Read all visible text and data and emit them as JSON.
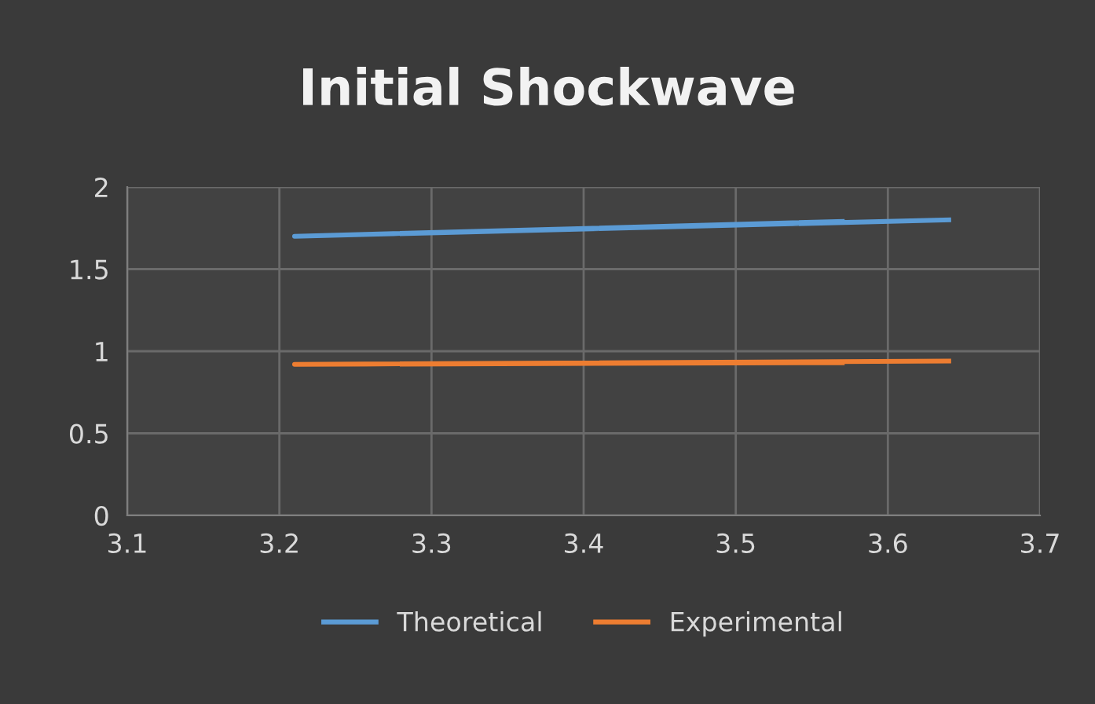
{
  "chart_data": {
    "type": "line",
    "title": "Initial Shockwave",
    "series": [
      {
        "name": "Theoretical",
        "color": "#5b9bd5",
        "x": [
          3.57,
          3.21,
          3.64
        ],
        "values": [
          1.79,
          1.7,
          1.8
        ]
      },
      {
        "name": "Experimental",
        "color": "#ed7d31",
        "x": [
          3.57,
          3.21,
          3.64
        ],
        "values": [
          0.93,
          0.92,
          0.94
        ]
      }
    ],
    "xlim": [
      3.1,
      3.7
    ],
    "xticks": [
      3.1,
      3.2,
      3.3,
      3.4,
      3.5,
      3.6,
      3.7
    ],
    "ylim": [
      0,
      2
    ],
    "yticks": [
      0,
      0.5,
      1,
      1.5,
      2
    ],
    "grid": true,
    "legend": "bottom",
    "marker": "none",
    "line_style": "solid"
  }
}
